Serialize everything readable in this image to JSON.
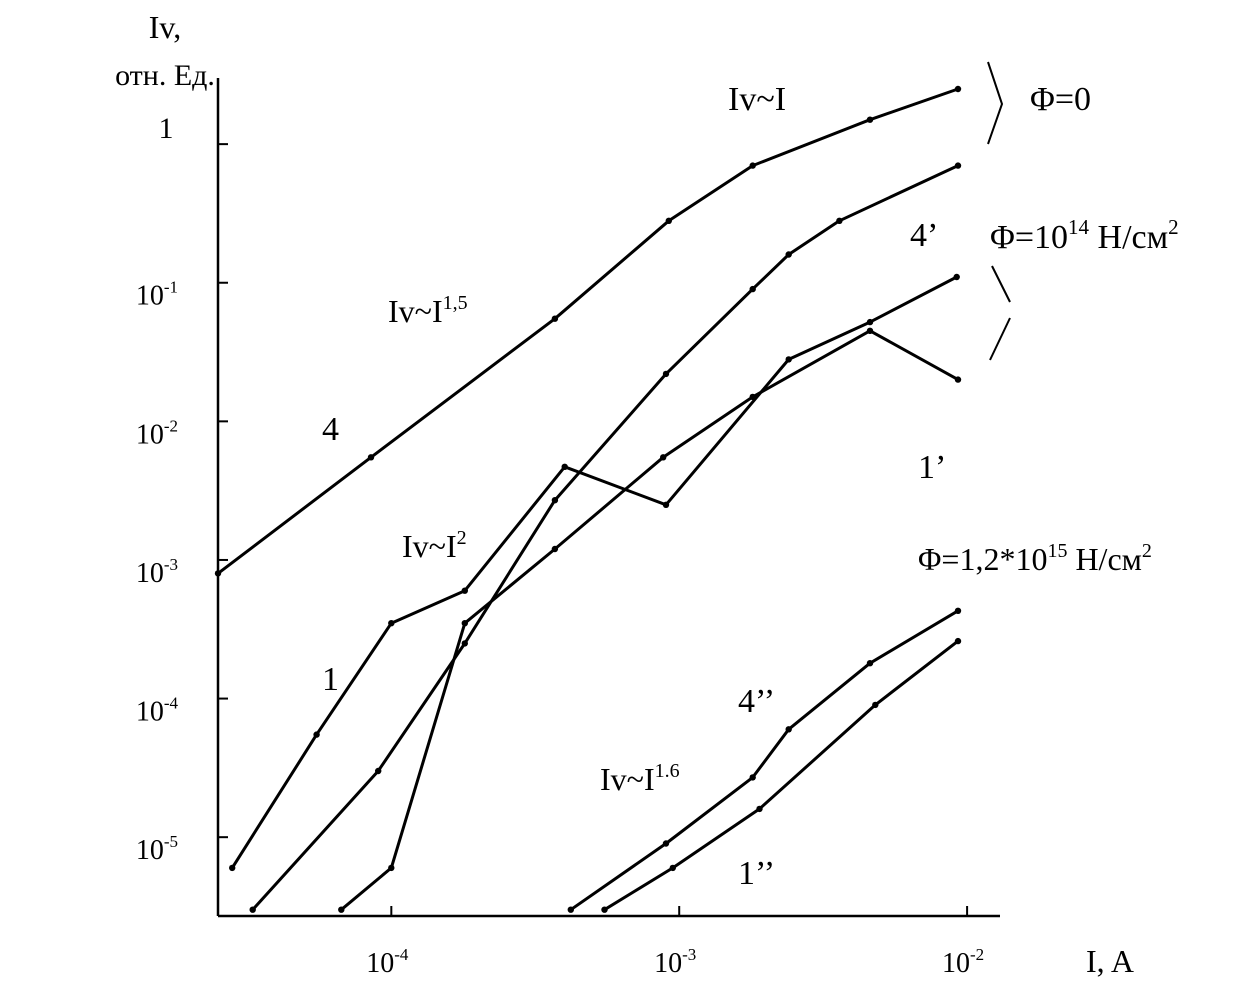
{
  "chart_data": {
    "type": "line",
    "title": "",
    "xlabel": "I, A",
    "ylabel": "Iv,",
    "ylabel_unit": "отн. Ед.",
    "xscale": "log",
    "yscale": "log",
    "xlim": [
      2.5e-05,
      0.0125
    ],
    "ylim": [
      2.7e-06,
      3
    ],
    "grid": false,
    "x_ticks": [
      {
        "value": 0.0001,
        "base": "10",
        "exp": "-4"
      },
      {
        "value": 0.001,
        "base": "10",
        "exp": "-3"
      },
      {
        "value": 0.01,
        "base": "10",
        "exp": "-2"
      }
    ],
    "y_ticks": [
      {
        "value": 1,
        "base": "1",
        "exp": ""
      },
      {
        "value": 0.1,
        "base": "10",
        "exp": "-1"
      },
      {
        "value": 0.01,
        "base": "10",
        "exp": "-2"
      },
      {
        "value": 0.001,
        "base": "10",
        "exp": "-3"
      },
      {
        "value": 0.0001,
        "base": "10",
        "exp": "-4"
      },
      {
        "value": 1e-05,
        "base": "10",
        "exp": "-5"
      }
    ],
    "series": [
      {
        "name": "4",
        "x": [
          2.5e-05,
          8.5e-05,
          0.00037,
          0.00092,
          0.0018,
          0.0046,
          0.0093
        ],
        "y": [
          0.0008,
          0.0055,
          0.055,
          0.28,
          0.7,
          1.5,
          2.5
        ]
      },
      {
        "name": "4'",
        "x": [
          3.3e-05,
          9e-05,
          0.00018,
          0.00037,
          0.0009,
          0.0018,
          0.0024,
          0.0036,
          0.0093
        ],
        "y": [
          3e-06,
          3e-05,
          0.00025,
          0.0027,
          0.022,
          0.09,
          0.16,
          0.28,
          0.7
        ]
      },
      {
        "name": "1",
        "x": [
          2.8e-05,
          5.5e-05,
          0.0001,
          0.00018,
          0.0004,
          0.0009,
          0.0024,
          0.0046,
          0.0092
        ],
        "y": [
          6e-06,
          5.5e-05,
          0.00035,
          0.0006,
          0.0047,
          0.0025,
          0.028,
          0.052,
          0.11
        ]
      },
      {
        "name": "1'",
        "x": [
          6.7e-05,
          0.0001,
          0.00018,
          0.00037,
          0.00088,
          0.0018,
          0.0046,
          0.0093
        ],
        "y": [
          3e-06,
          6e-06,
          0.00035,
          0.0012,
          0.0055,
          0.015,
          0.045,
          0.02
        ]
      },
      {
        "name": "4''",
        "x": [
          0.00042,
          0.0009,
          0.0018,
          0.0024,
          0.0046,
          0.0093
        ],
        "y": [
          3e-06,
          9e-06,
          2.7e-05,
          6e-05,
          0.00018,
          0.00043
        ]
      },
      {
        "name": "1''",
        "x": [
          0.00055,
          0.00095,
          0.0019,
          0.0048,
          0.0093
        ],
        "y": [
          3e-06,
          6e-06,
          1.6e-05,
          9e-05,
          0.00026
        ]
      }
    ],
    "annotations": [
      {
        "id": "iv-i",
        "main": "Iv~I",
        "sup": ""
      },
      {
        "id": "iv-i15",
        "main": "Iv~I",
        "sup": "1,5"
      },
      {
        "id": "iv-i2",
        "main": "Iv~I",
        "sup": "2"
      },
      {
        "id": "iv-i16",
        "main": "Iv~I",
        "sup": "1.6"
      },
      {
        "id": "phi0",
        "main": "Φ=0",
        "sup": ""
      },
      {
        "id": "phi14",
        "main": "Φ=10",
        "sup": "14",
        "tail": " Н/см",
        "tail_sup": "2"
      },
      {
        "id": "phi15",
        "main": "Φ=1,2*10",
        "sup": "15",
        "tail": " Н/см",
        "tail_sup": "2"
      },
      {
        "id": "lbl-4",
        "main": "4",
        "sup": ""
      },
      {
        "id": "lbl-1",
        "main": "1",
        "sup": ""
      },
      {
        "id": "lbl-4p",
        "main": "4’",
        "sup": ""
      },
      {
        "id": "lbl-1p",
        "main": "1’",
        "sup": ""
      },
      {
        "id": "lbl-4pp",
        "main": "4’’",
        "sup": ""
      },
      {
        "id": "lbl-1pp",
        "main": "1’’",
        "sup": ""
      }
    ]
  }
}
